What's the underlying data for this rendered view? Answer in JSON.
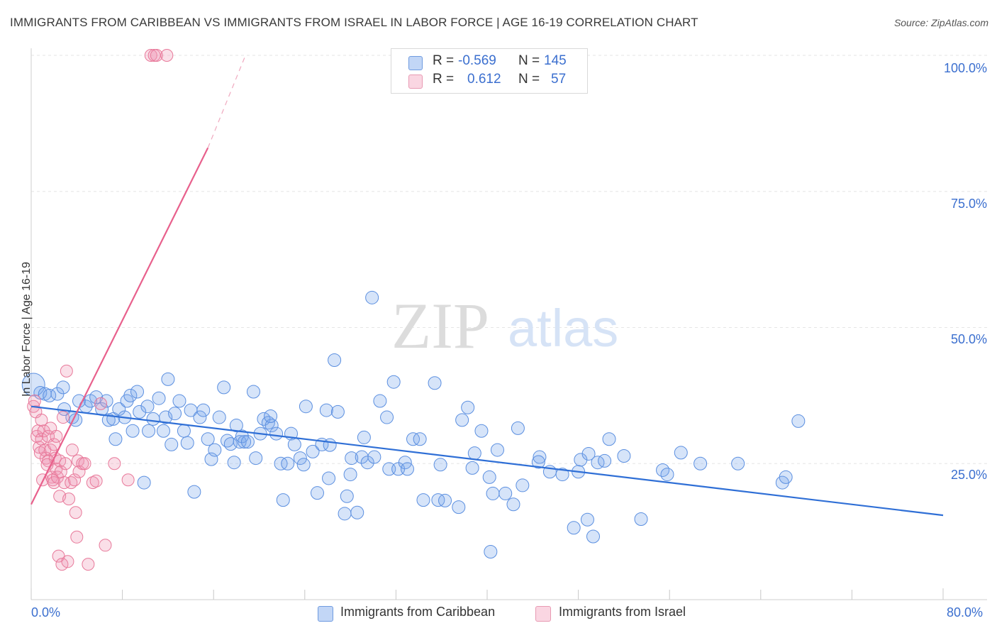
{
  "title": "IMMIGRANTS FROM CARIBBEAN VS IMMIGRANTS FROM ISRAEL IN LABOR FORCE | AGE 16-19 CORRELATION CHART",
  "source": "Source: ZipAtlas.com",
  "watermark": {
    "zip": "ZIP",
    "atlas": "atlas"
  },
  "legend": {
    "rows": [
      {
        "r_label": "R =",
        "r_value": "-0.569",
        "n_label": "N =",
        "n_value": "145"
      },
      {
        "r_label": "R =",
        "r_value": "0.612",
        "n_label": "N =",
        "n_value": "57"
      }
    ]
  },
  "colors": {
    "blue": "#5b8fe0",
    "blue_fill": "rgba(120,165,235,0.30)",
    "pink": "#e8799a",
    "pink_fill": "rgba(240,150,180,0.30)",
    "blue_line": "#2f6fd6",
    "pink_line": "#e8608c",
    "tick_text": "#3b6fcf"
  },
  "chart_data": {
    "type": "scatter",
    "ylabel": "In Labor Force | Age 16-19",
    "x_tick_labels": [
      "0.0%",
      "80.0%"
    ],
    "y_tick_labels": [
      "100.0%",
      "75.0%",
      "50.0%",
      "25.0%"
    ],
    "xlim": [
      0,
      80
    ],
    "ylim": [
      0,
      100
    ],
    "y_ticks": [
      100,
      75,
      50,
      25
    ],
    "series": [
      {
        "name": "Immigrants from Caribbean",
        "color": "#5b8fe0",
        "trend": {
          "x": [
            0,
            80
          ],
          "y": [
            35.5,
            15.5
          ]
        },
        "points": [
          [
            0.2,
            39.5
          ],
          [
            0.8,
            38
          ],
          [
            1.2,
            37.8
          ],
          [
            1.6,
            37.5
          ],
          [
            2.3,
            37.8
          ],
          [
            2.8,
            39
          ],
          [
            2.9,
            35
          ],
          [
            3.6,
            33.5
          ],
          [
            3.9,
            33
          ],
          [
            4.2,
            36.5
          ],
          [
            4.8,
            35.5
          ],
          [
            5.2,
            36.5
          ],
          [
            5.7,
            37.2
          ],
          [
            6.2,
            35
          ],
          [
            6.6,
            36.5
          ],
          [
            6.8,
            33
          ],
          [
            7.2,
            33.2
          ],
          [
            7.4,
            29.5
          ],
          [
            7.7,
            35
          ],
          [
            8.2,
            33.5
          ],
          [
            8.4,
            36.5
          ],
          [
            8.7,
            37.5
          ],
          [
            8.9,
            31
          ],
          [
            9.3,
            38.2
          ],
          [
            9.5,
            34.5
          ],
          [
            9.9,
            21.5
          ],
          [
            10.2,
            35.5
          ],
          [
            10.3,
            31
          ],
          [
            10.7,
            33.2
          ],
          [
            11.2,
            37
          ],
          [
            11.6,
            31
          ],
          [
            11.8,
            33.5
          ],
          [
            12.0,
            40.5
          ],
          [
            12.3,
            28.5
          ],
          [
            12.6,
            34.2
          ],
          [
            13.0,
            36.5
          ],
          [
            13.4,
            31
          ],
          [
            13.7,
            28.8
          ],
          [
            14.0,
            34.8
          ],
          [
            14.3,
            19.8
          ],
          [
            14.8,
            33.5
          ],
          [
            15.1,
            34.8
          ],
          [
            15.5,
            29.5
          ],
          [
            15.8,
            25.8
          ],
          [
            16.1,
            27.5
          ],
          [
            16.5,
            33.5
          ],
          [
            16.9,
            39
          ],
          [
            17.2,
            29.2
          ],
          [
            17.5,
            28.6
          ],
          [
            17.8,
            25.2
          ],
          [
            18.0,
            32.0
          ],
          [
            18.3,
            29.0
          ],
          [
            18.5,
            30.0
          ],
          [
            18.7,
            29
          ],
          [
            19.0,
            29.0
          ],
          [
            19.5,
            38.2
          ],
          [
            19.7,
            26
          ],
          [
            20.1,
            30.5
          ],
          [
            20.4,
            33.2
          ],
          [
            20.8,
            32.5
          ],
          [
            21.1,
            32
          ],
          [
            21.5,
            30.5
          ],
          [
            21.9,
            25
          ],
          [
            22.1,
            18.3
          ],
          [
            22.5,
            25
          ],
          [
            22.8,
            30.5
          ],
          [
            23.1,
            28.5
          ],
          [
            23.6,
            26
          ],
          [
            23.9,
            24.8
          ],
          [
            24.1,
            35.5
          ],
          [
            24.7,
            27.2
          ],
          [
            25.1,
            19.6
          ],
          [
            25.5,
            28.5
          ],
          [
            25.9,
            34.8
          ],
          [
            26.2,
            28.4
          ],
          [
            26.6,
            44
          ],
          [
            26.9,
            34.5
          ],
          [
            27.5,
            15.8
          ],
          [
            27.7,
            19
          ],
          [
            28.0,
            23
          ],
          [
            28.1,
            26
          ],
          [
            28.6,
            16
          ],
          [
            29.0,
            26.2
          ],
          [
            29.2,
            29.8
          ],
          [
            29.5,
            25.2
          ],
          [
            29.9,
            55.5
          ],
          [
            30.1,
            26.2
          ],
          [
            30.6,
            36.5
          ],
          [
            31.2,
            33.5
          ],
          [
            31.4,
            24
          ],
          [
            31.8,
            40
          ],
          [
            32.2,
            24
          ],
          [
            32.8,
            25.2
          ],
          [
            33.0,
            24
          ],
          [
            33.5,
            29.5
          ],
          [
            34.1,
            29.5
          ],
          [
            34.4,
            18.3
          ],
          [
            35.4,
            39.8
          ],
          [
            35.7,
            18.3
          ],
          [
            35.9,
            24.8
          ],
          [
            36.3,
            18.2
          ],
          [
            37.5,
            17
          ],
          [
            37.8,
            33
          ],
          [
            38.3,
            35.3
          ],
          [
            38.7,
            24.2
          ],
          [
            39.5,
            31
          ],
          [
            40.2,
            22.5
          ],
          [
            40.5,
            19.5
          ],
          [
            40.9,
            27.5
          ],
          [
            41.6,
            19.5
          ],
          [
            42.3,
            17.5
          ],
          [
            42.7,
            31.5
          ],
          [
            43.1,
            21
          ],
          [
            44.6,
            26.2
          ],
          [
            45.5,
            23.5
          ],
          [
            46.6,
            23
          ],
          [
            47.6,
            13.2
          ],
          [
            48.0,
            23.5
          ],
          [
            48.2,
            25.7
          ],
          [
            48.8,
            14.7
          ],
          [
            48.9,
            26.8
          ],
          [
            49.3,
            11.6
          ],
          [
            49.7,
            25.2
          ],
          [
            50.3,
            25.5
          ],
          [
            50.7,
            29.5
          ],
          [
            52.0,
            26.4
          ],
          [
            53.5,
            14.8
          ],
          [
            55.4,
            23.8
          ],
          [
            55.8,
            23
          ],
          [
            57.0,
            27
          ],
          [
            58.7,
            25
          ],
          [
            62.0,
            25
          ],
          [
            65.9,
            21.5
          ],
          [
            66.2,
            22.5
          ],
          [
            67.3,
            32.8
          ],
          [
            40.3,
            8.8
          ],
          [
            44.5,
            25.3
          ],
          [
            38.9,
            26.9
          ],
          [
            26.1,
            22.3
          ],
          [
            21.0,
            33.7
          ]
        ]
      },
      {
        "name": "Immigrants from Israel",
        "color": "#e8799a",
        "trend": {
          "x": [
            0,
            15.5
          ],
          "y": [
            17.5,
            83
          ],
          "dash_x": [
            15.5,
            18.8
          ],
          "dash_y": [
            83,
            100
          ]
        },
        "points": [
          [
            0.2,
            35.5
          ],
          [
            0.3,
            36.5
          ],
          [
            0.4,
            34.5
          ],
          [
            0.5,
            30
          ],
          [
            0.6,
            31
          ],
          [
            0.7,
            28
          ],
          [
            0.8,
            27
          ],
          [
            0.9,
            29.5
          ],
          [
            1.0,
            22
          ],
          [
            1.1,
            31
          ],
          [
            1.2,
            27.5
          ],
          [
            1.3,
            26
          ],
          [
            1.5,
            30
          ],
          [
            1.5,
            25.5
          ],
          [
            1.7,
            31.5
          ],
          [
            1.7,
            27.5
          ],
          [
            1.8,
            22.5
          ],
          [
            1.9,
            22
          ],
          [
            2.0,
            28.5
          ],
          [
            2.0,
            21.5
          ],
          [
            2.1,
            26
          ],
          [
            2.2,
            24
          ],
          [
            2.3,
            22.5
          ],
          [
            2.4,
            8
          ],
          [
            2.5,
            25.5
          ],
          [
            2.6,
            23.5
          ],
          [
            2.7,
            6.5
          ],
          [
            2.8,
            33.5
          ],
          [
            2.9,
            21.5
          ],
          [
            2.5,
            19
          ],
          [
            3.0,
            25
          ],
          [
            3.1,
            42
          ],
          [
            3.2,
            7
          ],
          [
            3.3,
            18.5
          ],
          [
            3.5,
            21.5
          ],
          [
            3.6,
            27.5
          ],
          [
            3.8,
            22
          ],
          [
            3.9,
            16
          ],
          [
            4.0,
            11.5
          ],
          [
            4.1,
            25.5
          ],
          [
            4.2,
            23.5
          ],
          [
            4.5,
            25
          ],
          [
            4.7,
            25
          ],
          [
            5.0,
            6.5
          ],
          [
            5.4,
            21.5
          ],
          [
            5.7,
            21.8
          ],
          [
            6.1,
            36
          ],
          [
            6.5,
            10
          ],
          [
            7.3,
            25
          ],
          [
            8.5,
            22
          ],
          [
            10.5,
            100
          ],
          [
            10.8,
            100
          ],
          [
            11.0,
            100
          ],
          [
            11.9,
            100
          ],
          [
            0.9,
            33
          ],
          [
            1.4,
            24.8
          ],
          [
            2.2,
            30
          ]
        ]
      }
    ]
  }
}
